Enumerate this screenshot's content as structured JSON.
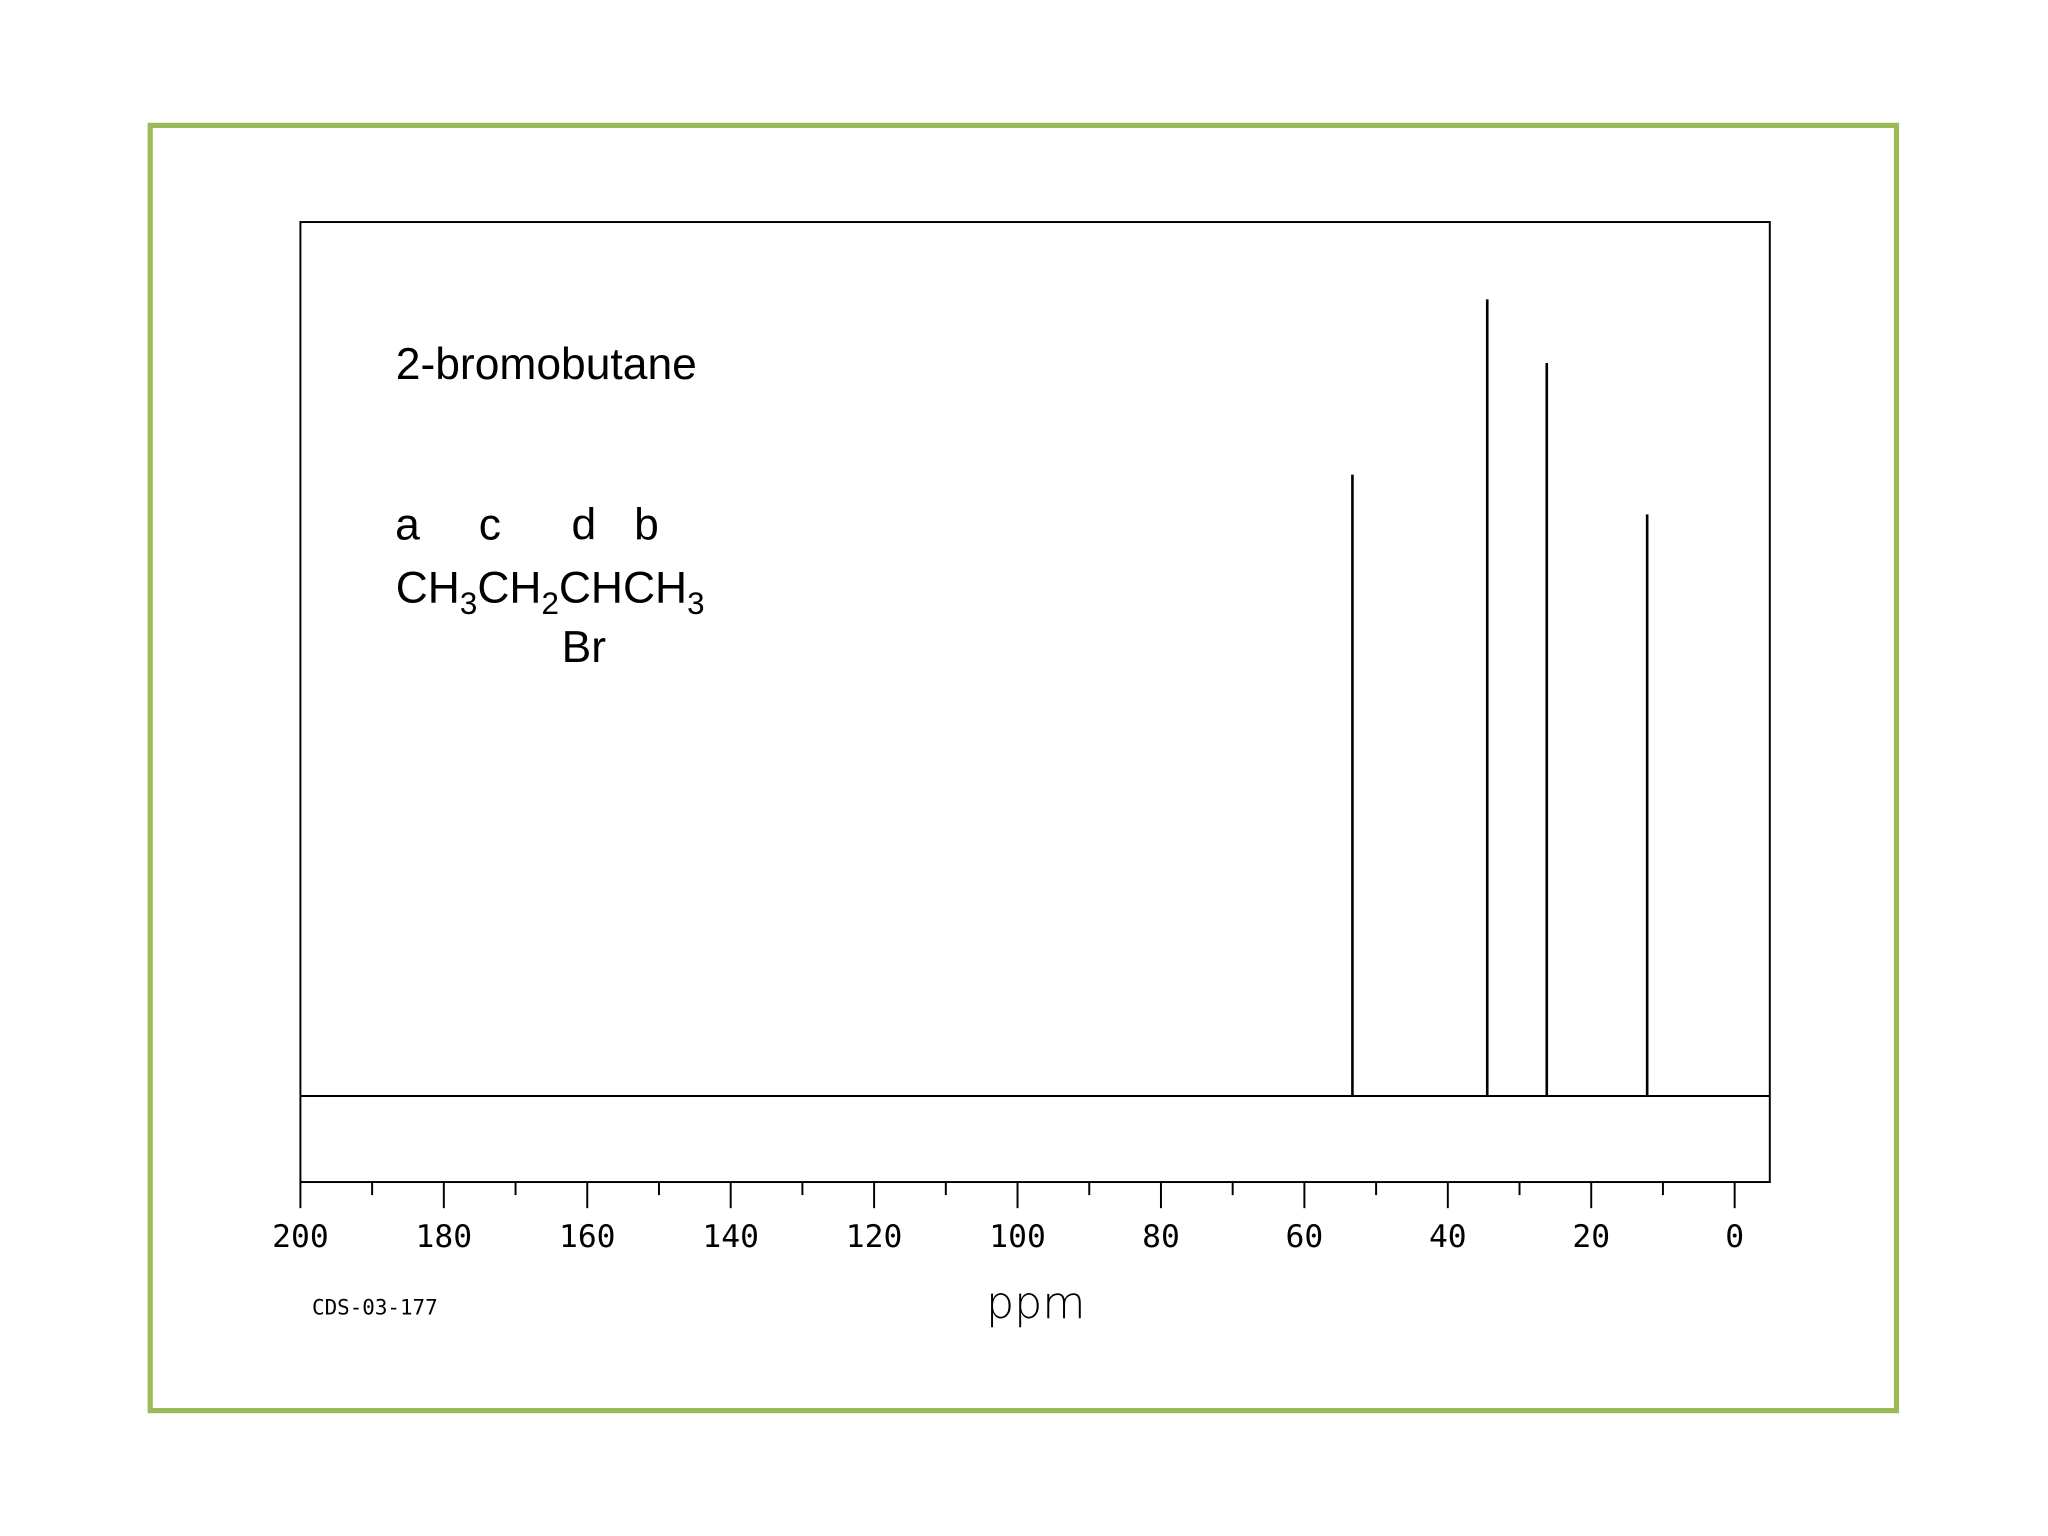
{
  "chart_data": {
    "type": "spectrum",
    "title": "2-bromobutane",
    "site_labels": [
      "a",
      "c",
      "d",
      "b"
    ],
    "formula_parts": [
      "CH",
      "3",
      "CH",
      "2",
      "CHCH",
      "3"
    ],
    "substituent": "Br",
    "x_label": "ppm",
    "code": "CDS-03-177",
    "x": [
      53.3,
      34.5,
      26.2,
      12.2
    ],
    "values": [
      78,
      100,
      92,
      73
    ],
    "color": "#000000",
    "border_color": "#9bbb59",
    "xlim": [
      200,
      -4.9
    ],
    "xticks": [
      200,
      180,
      160,
      140,
      120,
      100,
      80,
      60,
      40,
      20,
      0
    ],
    "xminorticks": [
      190,
      170,
      150,
      130,
      110,
      90,
      70,
      50,
      30,
      10
    ],
    "ylim": [
      -10.8,
      109.7
    ]
  }
}
